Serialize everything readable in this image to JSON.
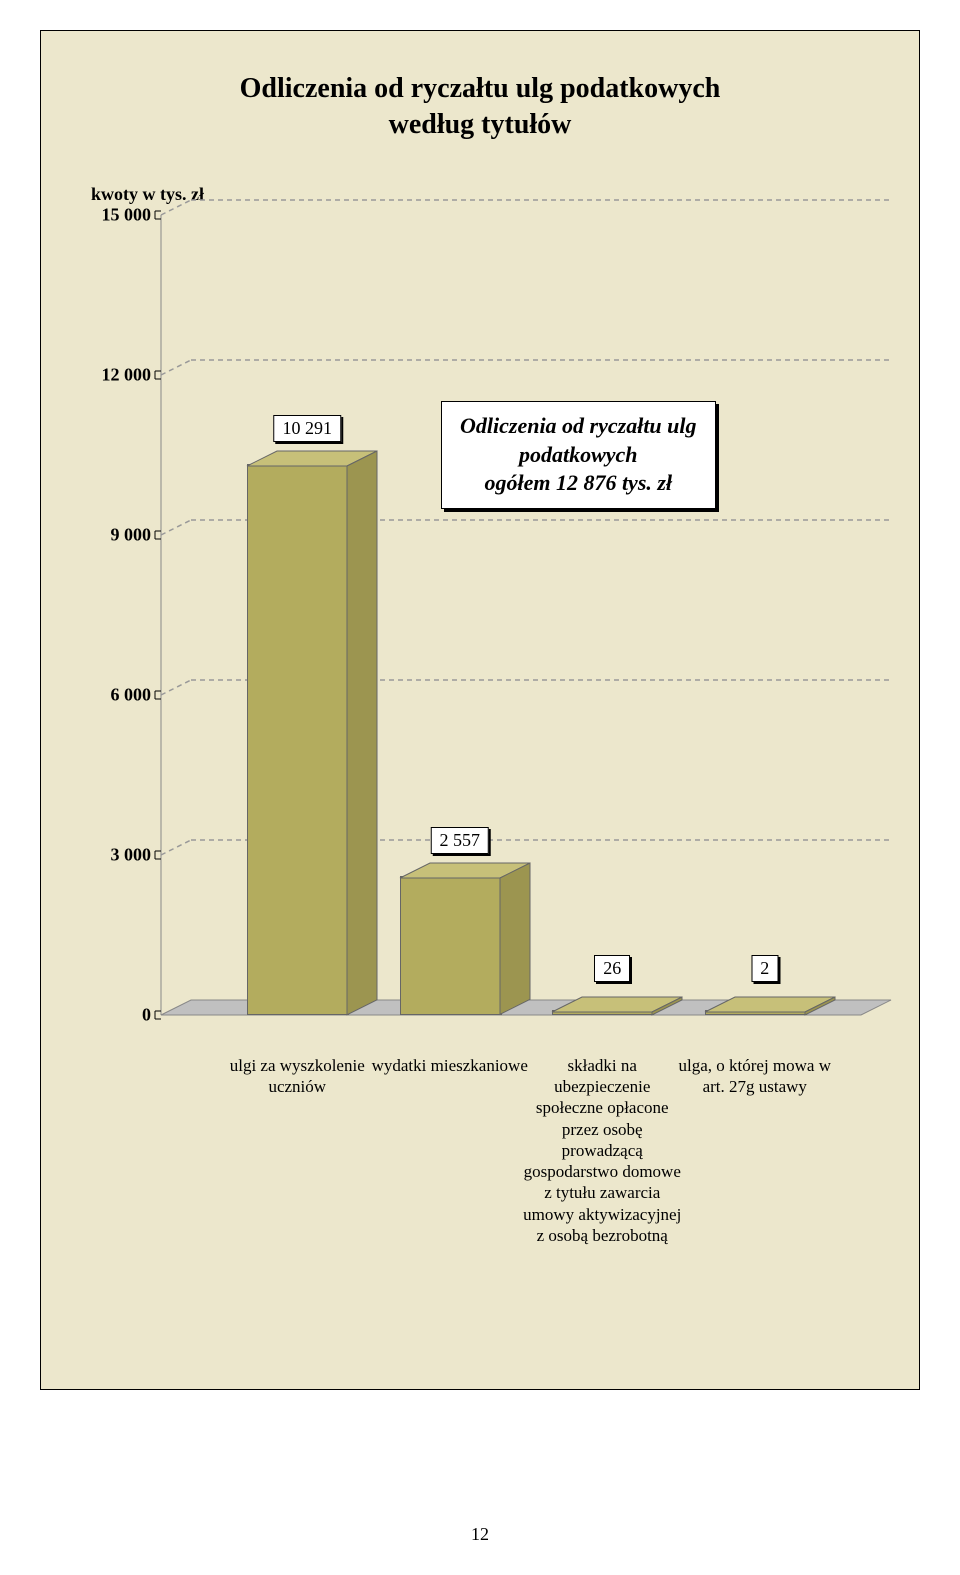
{
  "page_number": "12",
  "chart": {
    "type": "bar",
    "title_line1": "Odliczenia od ryczałtu ulg podatkowych",
    "title_line2": "według tytułów",
    "y_axis_label": "kwoty w tys. zł",
    "ylim_max": 15000,
    "ylim_min": 0,
    "ytick_step": 3000,
    "yticks": [
      {
        "v": 0,
        "label": "0"
      },
      {
        "v": 3000,
        "label": "3 000"
      },
      {
        "v": 6000,
        "label": "6 000"
      },
      {
        "v": 9000,
        "label": "9 000"
      },
      {
        "v": 12000,
        "label": "12 000"
      },
      {
        "v": 15000,
        "label": "15 000"
      }
    ],
    "info_box_line1": "Odliczenia od ryczałtu ulg",
    "info_box_line2": "podatkowych",
    "info_box_line3": "ogółem 12 876 tys. zł",
    "background_color": "#ece7cc",
    "bar_fill": "#b3ac5e",
    "bar_top": "#c7c079",
    "bar_side": "#9c9550",
    "grid_color": "#999999",
    "floor_color": "#c0c0c0",
    "bars": [
      {
        "value": 10291,
        "label": "10 291",
        "xlabel": "ulgi za wyszkolenie uczniów"
      },
      {
        "value": 2557,
        "label": "2 557",
        "xlabel": "wydatki mieszkaniowe"
      },
      {
        "value": 26,
        "label": "26",
        "xlabel": "składki na ubezpieczenie społeczne opłacone przez osobę prowadzącą gospodarstwo domowe z tytułu zawarcia umowy aktywizacyjnej z osobą bezrobotną"
      },
      {
        "value": 2,
        "label": "2",
        "xlabel": "ulga, o której mowa w art. 27g ustawy"
      }
    ],
    "title_fontsize": 28,
    "tick_fontsize": 18,
    "xlabel_fontsize": 17,
    "value_fontsize": 18,
    "info_fontsize": 22
  }
}
